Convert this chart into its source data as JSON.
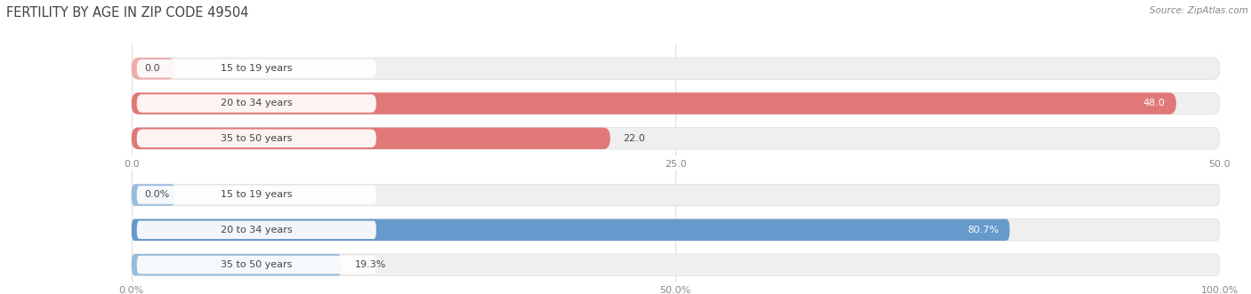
{
  "title": "FERTILITY BY AGE IN ZIP CODE 49504",
  "source": "Source: ZipAtlas.com",
  "top_chart": {
    "categories": [
      "15 to 19 years",
      "20 to 34 years",
      "35 to 50 years"
    ],
    "values": [
      0.0,
      48.0,
      22.0
    ],
    "xlim": [
      0,
      50
    ],
    "xticks": [
      0.0,
      25.0,
      50.0
    ],
    "bar_color": "#E07878",
    "bar_color_light": "#F0AAAA",
    "bar_bg_color": "#EFEFEF"
  },
  "bottom_chart": {
    "categories": [
      "15 to 19 years",
      "20 to 34 years",
      "35 to 50 years"
    ],
    "values": [
      0.0,
      80.7,
      19.3
    ],
    "xlim": [
      0,
      100
    ],
    "xticks": [
      0.0,
      50.0,
      100.0
    ],
    "xtick_labels": [
      "0.0%",
      "50.0%",
      "100.0%"
    ],
    "bar_color": "#6699CC",
    "bar_color_light": "#99BBDD",
    "bar_bg_color": "#EFEFEF"
  },
  "label_fontsize": 8.0,
  "value_fontsize": 8.0,
  "title_fontsize": 10.5,
  "source_fontsize": 7.5,
  "title_color": "#444444",
  "source_color": "#888888",
  "tick_color": "#888888",
  "label_color": "#444444",
  "value_color_inside": "#ffffff",
  "value_color_outside": "#444444",
  "grid_color": "#DDDDDD"
}
